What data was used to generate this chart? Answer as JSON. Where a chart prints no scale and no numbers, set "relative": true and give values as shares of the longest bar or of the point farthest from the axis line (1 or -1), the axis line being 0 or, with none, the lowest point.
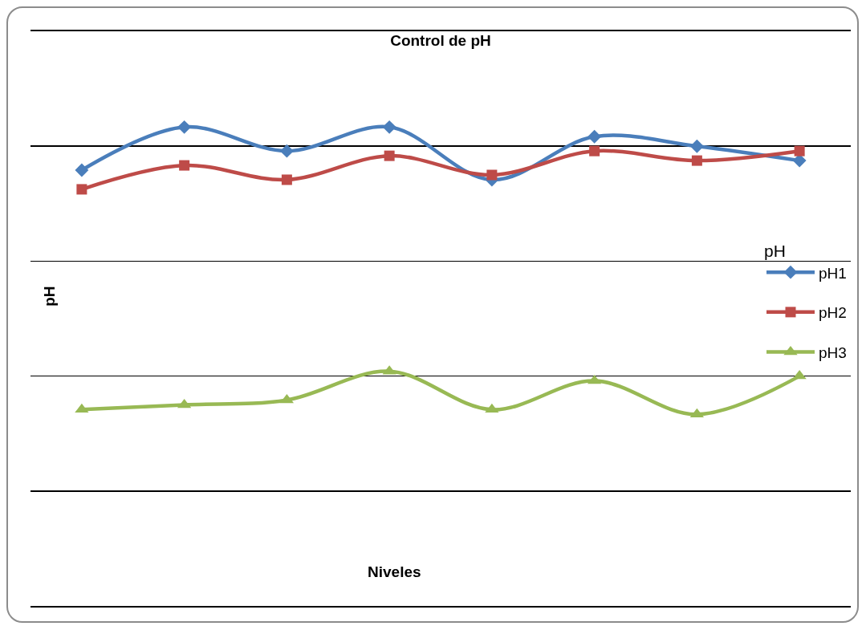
{
  "chart_data": {
    "type": "line",
    "title": "Control de pH",
    "xlabel": "Niveles",
    "ylabel": "pH",
    "legend_title": "pH",
    "relative": true,
    "categories": [
      null,
      null,
      null,
      null,
      null,
      null,
      null,
      null
    ],
    "series": [
      {
        "name": "pH1",
        "color": "#4a7ebb",
        "marker": "diamond",
        "values": [
          0.91,
          1.0,
          0.95,
          1.0,
          0.89,
          0.98,
          0.96,
          0.93
        ]
      },
      {
        "name": "pH2",
        "color": "#be4b48",
        "marker": "square",
        "values": [
          0.87,
          0.92,
          0.89,
          0.94,
          0.9,
          0.95,
          0.93,
          0.95
        ]
      },
      {
        "name": "pH3",
        "color": "#98b954",
        "marker": "triangle",
        "values": [
          0.41,
          0.42,
          0.43,
          0.49,
          0.41,
          0.47,
          0.4,
          0.48
        ]
      }
    ],
    "grid": "y",
    "legend": "right",
    "line_style": "solid"
  }
}
